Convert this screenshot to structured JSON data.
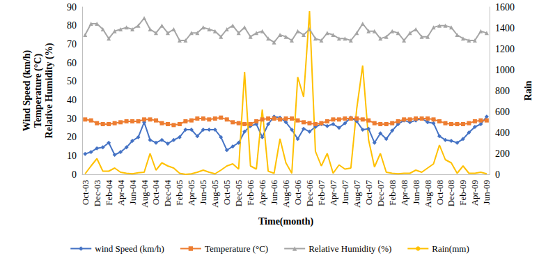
{
  "chart_data": {
    "type": "line",
    "x_label": "Time(month)",
    "y_label": "Wind Speed (km/h)\nTemperature (°C)\nRelative Humidity (%)",
    "y2_label": "Rain",
    "categories": [
      "Oct-03",
      null,
      "Dec-03",
      null,
      "Feb-04",
      null,
      "Apr-04",
      null,
      "Jun-04",
      null,
      "Aug-04",
      null,
      "Oct-04",
      null,
      "Dec-04",
      null,
      "Feb-05",
      null,
      "Apr-05",
      null,
      "Jun-05",
      null,
      "Aug-05",
      null,
      "Oct-05",
      null,
      "Dec-05",
      null,
      "Feb-06",
      null,
      "Apr-06",
      null,
      "Jun-06",
      null,
      "Aug-06",
      null,
      "Oct-06",
      null,
      "Dec-06",
      null,
      "Feb-07",
      null,
      "Apr-07",
      null,
      "Jun-07",
      null,
      "Aug-07",
      null,
      "Oct-07",
      null,
      "Dec-07",
      null,
      "Feb-08",
      null,
      "Apr-08",
      null,
      "Jun-08",
      null,
      "Aug-08",
      null,
      "Oct-08",
      null,
      "Dec-08",
      null,
      "Feb-09",
      null,
      "Apr-09",
      null,
      "Jun-09"
    ],
    "ylim": [
      0,
      90
    ],
    "yticks": [
      0,
      10,
      20,
      30,
      40,
      50,
      60,
      70,
      80,
      90
    ],
    "y2lim": [
      0,
      1600
    ],
    "y2ticks": [
      0,
      200,
      400,
      600,
      800,
      1000,
      1200,
      1400,
      1600
    ],
    "grid": false,
    "legend": "bottom",
    "series": [
      {
        "name": "wind Speed (km/h)",
        "color": "#4472c4",
        "marker": "diamond",
        "axis": "y",
        "values": [
          11,
          12,
          14,
          14.5,
          17,
          10.5,
          12,
          14.5,
          18,
          20,
          28,
          18.5,
          17,
          18.5,
          16.5,
          18.5,
          20,
          24,
          24,
          20.5,
          24,
          24,
          24,
          20,
          13,
          15,
          17,
          23,
          26,
          27,
          20,
          27,
          31,
          30.5,
          28,
          24,
          19,
          24.5,
          23,
          25.5,
          27,
          26,
          27,
          25,
          27.5,
          30.5,
          28.5,
          24,
          24.5,
          17,
          22,
          19,
          23.5,
          27,
          29,
          28,
          29,
          30,
          28,
          27.5,
          20.5,
          18.5,
          18,
          17,
          19,
          22.5,
          25.5,
          27,
          31
        ]
      },
      {
        "name": "Temperature (°C)",
        "color": "#ed7d31",
        "marker": "square",
        "axis": "y",
        "values": [
          29.5,
          29,
          27.5,
          27,
          27,
          27.5,
          28,
          28.5,
          28.5,
          28.5,
          29.5,
          29.5,
          29,
          27.5,
          27,
          26.5,
          27,
          28.5,
          29,
          30,
          30,
          29.5,
          30,
          30.5,
          29.5,
          28,
          27.5,
          27,
          27,
          28.5,
          29.5,
          30,
          30,
          29.5,
          30,
          30,
          29,
          28,
          27.5,
          27,
          27.5,
          28.5,
          29.5,
          29.5,
          30,
          30,
          30,
          29.5,
          29,
          27.5,
          27,
          27,
          27.5,
          28.5,
          29.5,
          29.5,
          30,
          30,
          30,
          29.5,
          28.5,
          27.5,
          27,
          27,
          27,
          27.5,
          28.5,
          29,
          29
        ]
      },
      {
        "name": "Relative Humidity (%)",
        "color": "#a5a5a5",
        "marker": "triangle",
        "axis": "y",
        "values": [
          75,
          81,
          81,
          78,
          73,
          77,
          78,
          79,
          78,
          80,
          84,
          78,
          76,
          80,
          76,
          78,
          72,
          72,
          76,
          76,
          79,
          78,
          77,
          74,
          78,
          80,
          76,
          79,
          74,
          76,
          77,
          73,
          71,
          75,
          74,
          72,
          77,
          75,
          78,
          73,
          72,
          76,
          75,
          73,
          73,
          72,
          76,
          81,
          77,
          77,
          73,
          74,
          77,
          76,
          72,
          76,
          78,
          74,
          74,
          79,
          80,
          80,
          79,
          75,
          73,
          72,
          72,
          77,
          76
        ]
      },
      {
        "name": "Rain(mm)",
        "color": "#ffc000",
        "marker": "none",
        "axis": "y2",
        "values": [
          5,
          80,
          150,
          30,
          30,
          60,
          20,
          10,
          5,
          15,
          20,
          200,
          40,
          110,
          80,
          60,
          10,
          0,
          5,
          20,
          40,
          20,
          5,
          40,
          80,
          100,
          50,
          980,
          80,
          50,
          620,
          30,
          10,
          340,
          110,
          10,
          930,
          740,
          1560,
          220,
          80,
          200,
          10,
          90,
          50,
          60,
          630,
          1040,
          330,
          70,
          200,
          20,
          10,
          5,
          10,
          10,
          40,
          20,
          60,
          100,
          280,
          140,
          110,
          10,
          80,
          10,
          10,
          20,
          5
        ]
      }
    ]
  }
}
